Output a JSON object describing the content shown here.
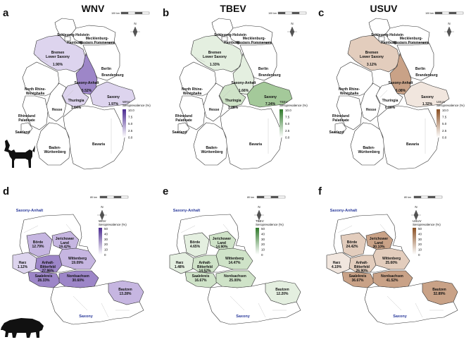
{
  "columns": [
    {
      "letter": "a",
      "title": "WNV",
      "color": "#4b2a91",
      "light": "#ddd4ee",
      "mid": "#c6b6e1",
      "dark": "#9d86c8"
    },
    {
      "letter": "b",
      "title": "TBEV",
      "color": "#2f7a2a",
      "light": "#e4efe0",
      "mid": "#cfe3c8",
      "dark": "#a4c99a"
    },
    {
      "letter": "c",
      "title": "USUV",
      "color": "#8a4f22",
      "light": "#f1e6de",
      "mid": "#e3cdbd",
      "dark": "#c9a287"
    }
  ],
  "letters_bottom": [
    "d",
    "e",
    "f"
  ],
  "germany": {
    "scale_label": "100 km",
    "north": "N",
    "legend_title": [
      "Seroprevalence (%)"
    ],
    "legend_ticks": [
      "10.0",
      "7.5",
      "5.0",
      "2.5",
      "0.0"
    ],
    "region_labels": {
      "sh": "Schleswig-Holstein",
      "hh": "Hamburg",
      "mv": [
        "Mecklenburg-",
        "Western Pommerania"
      ],
      "ni": [
        "Bremen",
        "Lower Saxony"
      ],
      "be": "Berlin",
      "bb": "Brandenburg",
      "st": "Saxony-Anhalt",
      "nw": [
        "North Rhine-",
        "Westphalia"
      ],
      "th": "Thuringia",
      "sn": "Saxony",
      "he": "Hesse",
      "rp": [
        "Rhineland",
        "Palatinate"
      ],
      "sl": "Saarland",
      "bw": [
        "Baden-",
        "Württemberg"
      ],
      "by": "Bavaria"
    },
    "values": [
      {
        "ni": "1.90%",
        "st": "5.52%",
        "th": "1.64%",
        "sn": "1.97%"
      },
      {
        "ni": "1.33%",
        "st": "1.66%",
        "th": "3.28%",
        "sn": "7.24%"
      },
      {
        "ni": "3.12%",
        "st": "6.08%",
        "th": "0.00%",
        "sn": "1.32%"
      }
    ]
  },
  "saxony": {
    "scale_label": "80 km",
    "north": "N",
    "legend_title": [
      "Seroprevalence (%)"
    ],
    "legend_ticks": [
      "50",
      "40",
      "30",
      "20",
      "10",
      "0"
    ],
    "state_labels": {
      "st": "Saxony-Anhalt",
      "sn": "Saxony"
    },
    "district_labels": {
      "borde": "Börde",
      "jl": [
        "Jerichower",
        "Land"
      ],
      "harz": "Harz",
      "ab": [
        "Anhalt-",
        "Bitterfeld"
      ],
      "wb": "Wittenberg",
      "sk": "Saalekreis",
      "ns": "Nordsachsen",
      "bz": "Bautzen"
    },
    "values": [
      {
        "borde": "12.79%",
        "jl": "19.42%",
        "harz": "1.12%",
        "ab": "27.96%",
        "wb": "19.09%",
        "sk": "28.33%",
        "ns": "30.60%",
        "bz": "13.28%"
      },
      {
        "borde": "4.65%",
        "jl": "14.90%",
        "harz": "1.48%",
        "ab": "14.52%",
        "wb": "14.47%",
        "sk": "16.67%",
        "ns": "25.00%",
        "bz": "12.20%"
      },
      {
        "borde": "24.42%",
        "jl": "30.10%",
        "harz": "4.19%",
        "ab": "26.90%",
        "wb": "25.60%",
        "sk": "36.67%",
        "ns": "41.52%",
        "bz": "32.89%"
      }
    ]
  },
  "icons": [
    "dog-silhouette-icon",
    "wild-boar-silhouette-icon"
  ]
}
